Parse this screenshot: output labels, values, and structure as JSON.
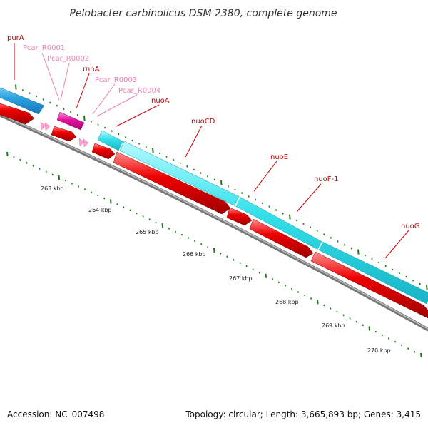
{
  "title": "Pelobacter carbinolicus DSM 2380, complete genome",
  "footer": {
    "accession": "Accession: NC_007498",
    "topology": "Topology: circular; Length: 3,665,893 bp; Genes: 3,415"
  },
  "colors": {
    "background": "#ffffff",
    "gene_label": "#cc0000",
    "rna_label": "#ee7fb4",
    "strand_blue": "#2ba3e0",
    "strand_cyan": "#33e0ea",
    "strand_magenta": "#e0119b",
    "cds_red": "#ee0000",
    "rna_marker": "#ff9fcf",
    "backbone": "#777777",
    "tick_green": "#1a7a1a"
  },
  "gene_labels": [
    {
      "name": "purA",
      "kind": "gene"
    },
    {
      "name": "Pcar_R0001",
      "kind": "rna"
    },
    {
      "name": "Pcar_R0002",
      "kind": "rna"
    },
    {
      "name": "rnhA",
      "kind": "gene"
    },
    {
      "name": "Pcar_R0003",
      "kind": "rna"
    },
    {
      "name": "Pcar_R0004",
      "kind": "rna"
    },
    {
      "name": "nuoA",
      "kind": "gene"
    },
    {
      "name": "nuoCD",
      "kind": "gene"
    },
    {
      "name": "nuoE",
      "kind": "gene"
    },
    {
      "name": "nuoF-1",
      "kind": "gene"
    },
    {
      "name": "nuoG",
      "kind": "gene"
    }
  ],
  "scale_labels": [
    "263 kbp",
    "264 kbp",
    "265 kbp",
    "266 kbp",
    "267 kbp",
    "268 kbp",
    "269 kbp",
    "270 kbp"
  ]
}
